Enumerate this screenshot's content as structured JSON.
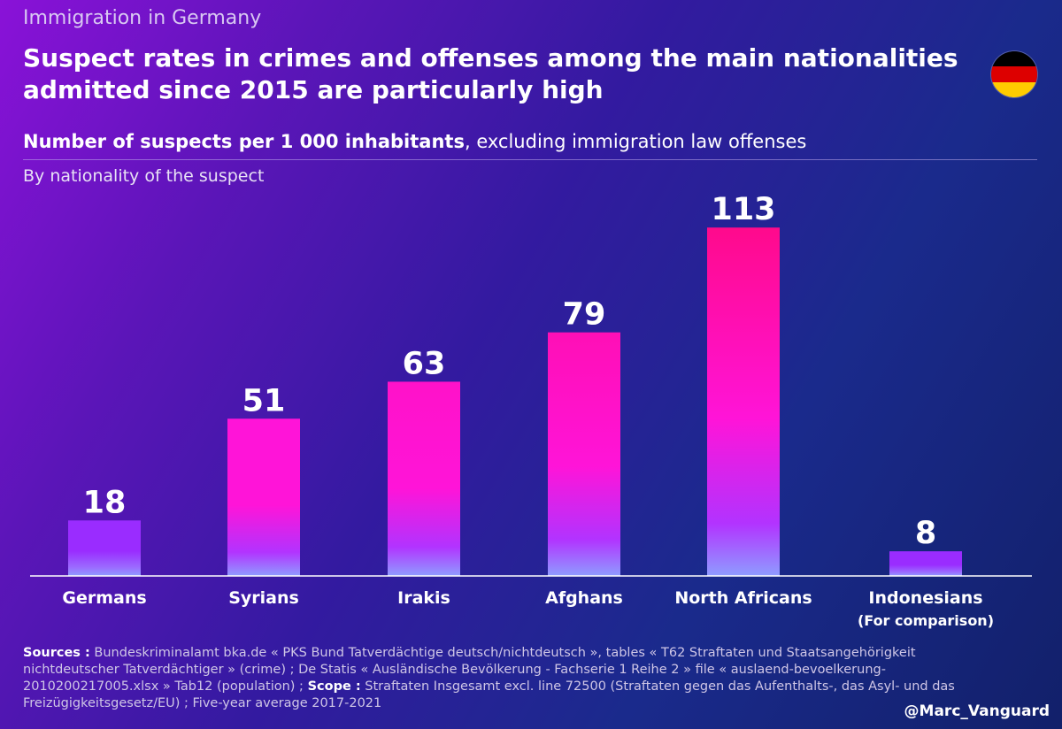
{
  "header": {
    "kicker": "Immigration in Germany",
    "title": "Suspect rates in crimes and offenses among the main nationalities admitted since 2015 are particularly high",
    "subtitle_bold": "Number of suspects per 1 000 inhabitants",
    "subtitle_rest": ", excluding immigration law offenses",
    "byline": "By nationality of the suspect"
  },
  "flag": {
    "colors": [
      "#000000",
      "#dd0000",
      "#ffcc00"
    ]
  },
  "chart_data": {
    "type": "bar",
    "title": "Number of suspects per 1 000 inhabitants, excluding immigration law offenses",
    "xlabel": "",
    "ylabel": "",
    "ylim": [
      0,
      120
    ],
    "categories": [
      "Germans",
      "Syrians",
      "Irakis",
      "Afghans",
      "North Africans",
      "Indonesians"
    ],
    "category_notes": [
      "",
      "",
      "",
      "",
      "",
      "(For comparison)"
    ],
    "values": [
      18,
      51,
      63,
      79,
      113,
      8
    ],
    "grid": false,
    "legend": "none"
  },
  "colors": {
    "bar_top_low": "#9a2cff",
    "bar_top_high": "#ff0a8c",
    "bar_mid": "#ff14d8",
    "bar_bottom": "#8f9cff"
  },
  "footer": {
    "sources_label": "Sources :",
    "sources_text": " Bundeskriminalamt bka.de « PKS Bund Tatverdächtige deutsch/nichtdeutsch », tables « T62 Straftaten und Staatsangehörigkeit nichtdeutscher Tatverdächtiger » (crime) ; De Statis « Ausländische Bevölkerung - Fachserie 1 Reihe 2 » file « auslaend-bevoelkerung-2010200217005.xlsx » Tab12 (population) ; ",
    "scope_label": "Scope :",
    "scope_text": " Straftaten Insgesamt excl. line 72500 (Straftaten gegen das Aufenthalts-, das Asyl- und das Freizügigkeitsgesetz/EU) ; Five-year average 2017-2021",
    "handle": "@Marc_Vanguard"
  }
}
